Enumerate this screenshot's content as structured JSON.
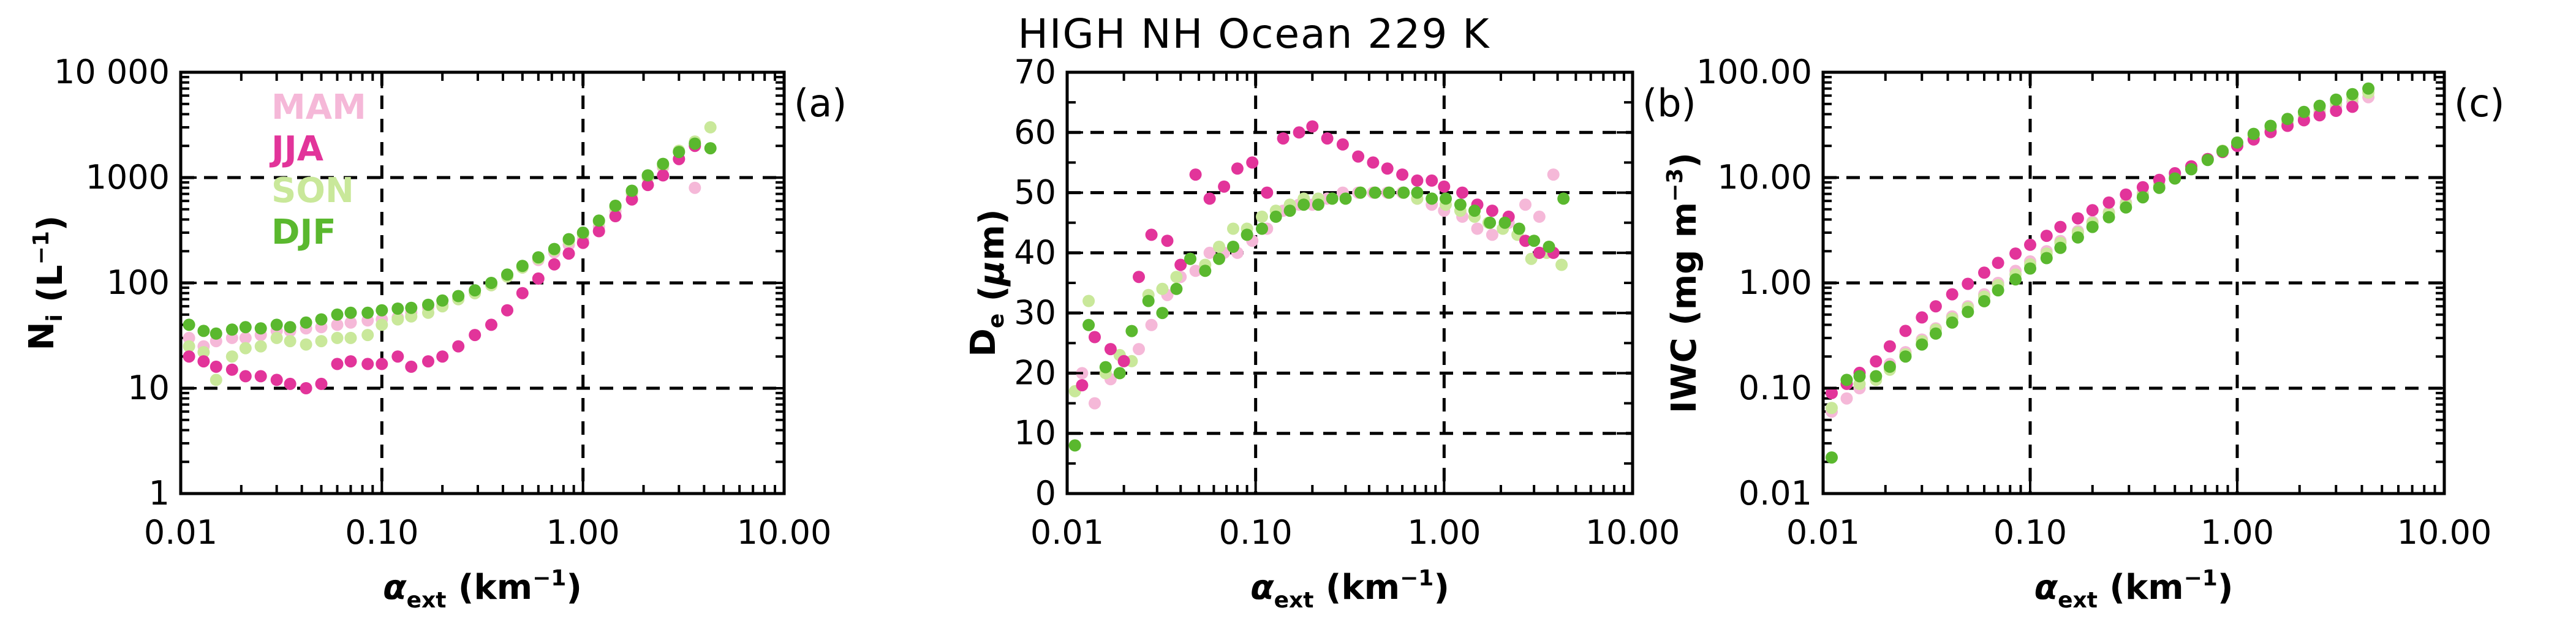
{
  "figure": {
    "title": "HIGH NH Ocean 229 K",
    "colors": {
      "MAM": "#f5b8d8",
      "JJA": "#e2349a",
      "SON": "#c9e89a",
      "DJF": "#5ab82e"
    },
    "legend": [
      "MAM",
      "JJA",
      "SON",
      "DJF"
    ]
  },
  "chart_data": [
    {
      "type": "scatter",
      "panel_label": "(a)",
      "xlabel": "α_ext (km⁻¹)",
      "xlabel_main": "α",
      "xlabel_sub": "ext",
      "xlabel_rest": " (km",
      "xlabel_sup": "−1",
      "xlabel_end": ")",
      "ylabel_main": "N",
      "ylabel_sub": "i",
      "ylabel_rest": " (L",
      "ylabel_sup": "−1",
      "ylabel_end": ")",
      "xscale": "log",
      "yscale": "log",
      "xlim": [
        0.01,
        10
      ],
      "ylim": [
        1,
        10000
      ],
      "xticks": [
        0.01,
        0.1,
        1,
        10
      ],
      "xtick_labels": [
        "0.01",
        "0.10",
        "1.00",
        "10.00"
      ],
      "yticks": [
        1,
        10,
        100,
        1000,
        10000
      ],
      "ytick_labels": [
        "1",
        "10",
        "100",
        "1000",
        "10 000"
      ],
      "grid": "dashed at major ticks",
      "legend_position": "top-left",
      "series": [
        {
          "name": "MAM",
          "x": [
            0.011,
            0.013,
            0.015,
            0.018,
            0.021,
            0.025,
            0.03,
            0.035,
            0.042,
            0.05,
            0.06,
            0.07,
            0.085,
            0.1,
            0.12,
            0.14,
            0.17,
            0.2,
            0.24,
            0.29,
            0.35,
            0.42,
            0.5,
            0.6,
            0.72,
            0.85,
            1.0,
            1.2,
            1.45,
            1.75,
            2.1,
            2.5,
            3.0,
            3.6
          ],
          "y": [
            30,
            25,
            28,
            30,
            30,
            32,
            35,
            35,
            37,
            38,
            40,
            42,
            44,
            45,
            47,
            52,
            58,
            62,
            70,
            80,
            95,
            115,
            140,
            165,
            195,
            230,
            260,
            340,
            480,
            700,
            1000,
            1250,
            1500,
            800
          ]
        },
        {
          "name": "JJA",
          "x": [
            0.011,
            0.013,
            0.015,
            0.018,
            0.021,
            0.025,
            0.03,
            0.035,
            0.042,
            0.05,
            0.06,
            0.07,
            0.085,
            0.1,
            0.12,
            0.14,
            0.17,
            0.2,
            0.24,
            0.29,
            0.35,
            0.42,
            0.5,
            0.6,
            0.72,
            0.85,
            1.0,
            1.2,
            1.45,
            1.75,
            2.1,
            2.5,
            3.0,
            3.6
          ],
          "y": [
            20,
            18,
            16,
            15,
            13,
            13,
            12,
            11,
            10,
            11,
            17,
            18,
            17,
            17,
            20,
            16,
            18,
            20,
            25,
            32,
            40,
            55,
            80,
            110,
            150,
            190,
            240,
            310,
            430,
            620,
            850,
            1050,
            1500,
            2000
          ]
        },
        {
          "name": "SON",
          "x": [
            0.011,
            0.013,
            0.015,
            0.018,
            0.021,
            0.025,
            0.03,
            0.035,
            0.042,
            0.05,
            0.06,
            0.07,
            0.085,
            0.1,
            0.12,
            0.14,
            0.17,
            0.2,
            0.24,
            0.29,
            0.35,
            0.42,
            0.5,
            0.6,
            0.72,
            0.85,
            1.0,
            1.2,
            1.45,
            1.75,
            2.1,
            2.5,
            3.0,
            3.6,
            4.3
          ],
          "y": [
            25,
            22,
            12,
            20,
            24,
            25,
            30,
            28,
            26,
            28,
            30,
            30,
            32,
            40,
            45,
            48,
            52,
            60,
            70,
            80,
            95,
            115,
            140,
            170,
            205,
            250,
            290,
            380,
            520,
            720,
            1000,
            1300,
            1800,
            2200,
            3000
          ]
        },
        {
          "name": "DJF",
          "x": [
            0.011,
            0.013,
            0.015,
            0.018,
            0.021,
            0.025,
            0.03,
            0.035,
            0.042,
            0.05,
            0.06,
            0.07,
            0.085,
            0.1,
            0.12,
            0.14,
            0.17,
            0.2,
            0.24,
            0.29,
            0.35,
            0.42,
            0.5,
            0.6,
            0.72,
            0.85,
            1.0,
            1.2,
            1.45,
            1.75,
            2.1,
            2.5,
            3.0,
            3.6,
            4.3
          ],
          "y": [
            40,
            35,
            33,
            36,
            38,
            37,
            40,
            38,
            42,
            45,
            50,
            52,
            52,
            55,
            57,
            58,
            62,
            68,
            75,
            85,
            100,
            120,
            145,
            175,
            210,
            260,
            300,
            390,
            540,
            750,
            1050,
            1350,
            1750,
            2100,
            1900
          ]
        }
      ]
    },
    {
      "type": "scatter",
      "panel_label": "(b)",
      "xlabel": "α_ext (km⁻¹)",
      "xlabel_main": "α",
      "xlabel_sub": "ext",
      "xlabel_rest": " (km",
      "xlabel_sup": "−1",
      "xlabel_end": ")",
      "ylabel_main": "D",
      "ylabel_sub": "e",
      "ylabel_rest": " (μm)",
      "ylabel_sup": "",
      "ylabel_end": "",
      "xscale": "log",
      "yscale": "linear",
      "xlim": [
        0.01,
        10
      ],
      "ylim": [
        0,
        70
      ],
      "xticks": [
        0.01,
        0.1,
        1,
        10
      ],
      "xtick_labels": [
        "0.01",
        "0.10",
        "1.00",
        "10.00"
      ],
      "yticks": [
        0,
        10,
        20,
        30,
        40,
        50,
        60,
        70
      ],
      "ytick_labels": [
        "0",
        "10",
        "20",
        "30",
        "40",
        "50",
        "60",
        "70"
      ],
      "grid": "dashed at major ticks",
      "series": [
        {
          "name": "MAM",
          "x": [
            0.012,
            0.014,
            0.017,
            0.02,
            0.024,
            0.028,
            0.034,
            0.04,
            0.048,
            0.057,
            0.068,
            0.08,
            0.096,
            0.115,
            0.14,
            0.17,
            0.2,
            0.24,
            0.29,
            0.35,
            0.42,
            0.5,
            0.6,
            0.72,
            0.86,
            1.0,
            1.25,
            1.5,
            1.8,
            2.2,
            2.7,
            3.2,
            3.8
          ],
          "y": [
            20,
            15,
            19,
            22,
            24,
            28,
            33,
            36,
            37,
            40,
            40,
            40,
            42,
            44,
            47,
            48,
            48,
            49,
            50,
            50,
            50,
            50,
            50,
            49,
            48,
            47,
            46,
            44,
            43,
            45,
            48,
            46,
            53
          ]
        },
        {
          "name": "JJA",
          "x": [
            0.012,
            0.014,
            0.017,
            0.02,
            0.024,
            0.028,
            0.034,
            0.04,
            0.048,
            0.057,
            0.068,
            0.08,
            0.096,
            0.115,
            0.14,
            0.17,
            0.2,
            0.24,
            0.29,
            0.35,
            0.42,
            0.5,
            0.6,
            0.72,
            0.86,
            1.0,
            1.25,
            1.5,
            1.8,
            2.2,
            2.7,
            3.2,
            3.8
          ],
          "y": [
            18,
            26,
            24,
            22,
            36,
            43,
            42,
            38,
            53,
            49,
            51,
            54,
            55,
            50,
            59,
            60,
            61,
            59,
            58,
            56,
            55,
            54,
            53,
            52,
            52,
            51,
            50,
            48,
            47,
            46,
            42,
            40,
            40
          ]
        },
        {
          "name": "SON",
          "x": [
            0.011,
            0.013,
            0.016,
            0.019,
            0.022,
            0.027,
            0.032,
            0.038,
            0.045,
            0.054,
            0.064,
            0.076,
            0.09,
            0.108,
            0.128,
            0.152,
            0.18,
            0.215,
            0.255,
            0.3,
            0.36,
            0.43,
            0.51,
            0.61,
            0.72,
            0.86,
            1.02,
            1.22,
            1.45,
            1.72,
            2.05,
            2.45,
            2.9,
            3.5,
            4.2
          ],
          "y": [
            17,
            32,
            20,
            23,
            22,
            33,
            34,
            36,
            39,
            38,
            41,
            44,
            44,
            46,
            47,
            48,
            49,
            49,
            49,
            49,
            50,
            50,
            50,
            50,
            49,
            49,
            48,
            47,
            46,
            45,
            44,
            43,
            39,
            40,
            38
          ]
        },
        {
          "name": "DJF",
          "x": [
            0.011,
            0.013,
            0.016,
            0.019,
            0.022,
            0.027,
            0.032,
            0.038,
            0.045,
            0.054,
            0.064,
            0.076,
            0.09,
            0.108,
            0.128,
            0.152,
            0.18,
            0.215,
            0.255,
            0.3,
            0.36,
            0.43,
            0.51,
            0.61,
            0.72,
            0.86,
            1.02,
            1.22,
            1.45,
            1.75,
            2.1,
            2.5,
            3.0,
            3.6,
            4.3
          ],
          "y": [
            8,
            28,
            21,
            20,
            27,
            32,
            30,
            34,
            39,
            37,
            39,
            41,
            43,
            44,
            46,
            47,
            48,
            48,
            49,
            49,
            50,
            50,
            50,
            50,
            50,
            49,
            49,
            48,
            47,
            45,
            45,
            44,
            42,
            41,
            49
          ]
        }
      ]
    },
    {
      "type": "scatter",
      "panel_label": "(c)",
      "xlabel": "α_ext (km⁻¹)",
      "xlabel_main": "α",
      "xlabel_sub": "ext",
      "xlabel_rest": " (km",
      "xlabel_sup": "−1",
      "xlabel_end": ")",
      "ylabel_main": "IWC",
      "ylabel_sub": "",
      "ylabel_rest": " (mg m",
      "ylabel_sup": "−3",
      "ylabel_end": ")",
      "xscale": "log",
      "yscale": "log",
      "xlim": [
        0.01,
        10
      ],
      "ylim": [
        0.01,
        100
      ],
      "xticks": [
        0.01,
        0.1,
        1,
        10
      ],
      "xtick_labels": [
        "0.01",
        "0.10",
        "1.00",
        "10.00"
      ],
      "yticks": [
        0.01,
        0.1,
        1,
        10,
        100
      ],
      "ytick_labels": [
        "0.01",
        "0.10",
        "1.00",
        "10.00",
        "100.00"
      ],
      "grid": "dashed at major ticks",
      "series": [
        {
          "name": "MAM",
          "x": [
            0.011,
            0.013,
            0.015,
            0.018,
            0.021,
            0.025,
            0.03,
            0.035,
            0.042,
            0.05,
            0.06,
            0.07,
            0.085,
            0.1,
            0.12,
            0.14,
            0.17,
            0.2,
            0.24,
            0.29,
            0.35,
            0.42,
            0.5,
            0.6,
            0.72,
            0.85,
            1.0,
            1.2,
            1.45,
            1.75,
            2.1,
            2.5,
            3.0,
            3.6,
            4.3
          ],
          "y": [
            0.06,
            0.08,
            0.1,
            0.13,
            0.17,
            0.22,
            0.29,
            0.37,
            0.48,
            0.6,
            0.78,
            1.0,
            1.3,
            1.6,
            2.0,
            2.5,
            3.1,
            3.8,
            4.7,
            5.8,
            7.1,
            8.6,
            10.4,
            12.5,
            15,
            18,
            21,
            25,
            29,
            33,
            37,
            42,
            47,
            52,
            58
          ]
        },
        {
          "name": "JJA",
          "x": [
            0.011,
            0.013,
            0.015,
            0.018,
            0.021,
            0.025,
            0.03,
            0.035,
            0.042,
            0.05,
            0.06,
            0.07,
            0.085,
            0.1,
            0.12,
            0.14,
            0.17,
            0.2,
            0.24,
            0.29,
            0.35,
            0.42,
            0.5,
            0.6,
            0.72,
            0.85,
            1.0,
            1.2,
            1.45,
            1.75,
            2.1,
            2.5,
            3.0,
            3.6
          ],
          "y": [
            0.09,
            0.11,
            0.14,
            0.18,
            0.25,
            0.35,
            0.47,
            0.6,
            0.78,
            0.98,
            1.25,
            1.55,
            1.9,
            2.3,
            2.8,
            3.4,
            4.1,
            4.9,
            5.8,
            6.9,
            8.1,
            9.5,
            11,
            12.8,
            15,
            17.5,
            20,
            23,
            27,
            31,
            35,
            39,
            43,
            47
          ]
        },
        {
          "name": "SON",
          "x": [
            0.011,
            0.013,
            0.015,
            0.018,
            0.021,
            0.025,
            0.03,
            0.035,
            0.042,
            0.05,
            0.06,
            0.07,
            0.085,
            0.1,
            0.12,
            0.14,
            0.17,
            0.2,
            0.24,
            0.29,
            0.35,
            0.42,
            0.5,
            0.6,
            0.72,
            0.85,
            1.0,
            1.2,
            1.45,
            1.75,
            2.1,
            2.5,
            3.0,
            3.6,
            4.3
          ],
          "y": [
            0.065,
            0.11,
            0.11,
            0.12,
            0.15,
            0.21,
            0.28,
            0.36,
            0.46,
            0.58,
            0.74,
            0.95,
            1.2,
            1.5,
            1.9,
            2.4,
            3.0,
            3.7,
            4.6,
            5.6,
            6.9,
            8.4,
            10.2,
            12.3,
            15,
            18,
            21,
            25,
            29.5,
            34,
            39,
            45,
            51,
            57,
            64
          ]
        },
        {
          "name": "DJF",
          "x": [
            0.011,
            0.013,
            0.015,
            0.018,
            0.021,
            0.025,
            0.03,
            0.035,
            0.042,
            0.05,
            0.06,
            0.07,
            0.085,
            0.1,
            0.12,
            0.14,
            0.17,
            0.2,
            0.24,
            0.29,
            0.35,
            0.42,
            0.5,
            0.6,
            0.72,
            0.85,
            1.0,
            1.2,
            1.45,
            1.75,
            2.1,
            2.5,
            3.0,
            3.6,
            4.3
          ],
          "y": [
            0.022,
            0.12,
            0.13,
            0.13,
            0.16,
            0.2,
            0.26,
            0.33,
            0.42,
            0.53,
            0.67,
            0.85,
            1.08,
            1.37,
            1.72,
            2.15,
            2.7,
            3.4,
            4.2,
            5.2,
            6.5,
            8.0,
            9.8,
            12,
            14.7,
            17.8,
            21.5,
            26,
            31,
            36,
            42,
            48,
            55,
            62,
            70
          ]
        }
      ]
    }
  ]
}
